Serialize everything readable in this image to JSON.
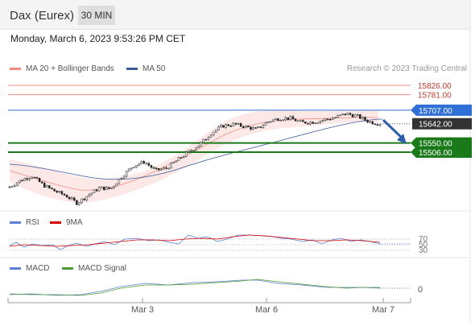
{
  "header": {
    "title": "Dax (Eurex)",
    "timeframe": "30 MIN"
  },
  "date_line": "Monday, March 6, 2023 9:53:26 PM CET",
  "source": "Research © 2023 Trading Central",
  "legend": {
    "bollinger": "MA 20 + Bollinger Bands",
    "ma50": "MA 50",
    "rsi": "RSI",
    "rsi_ma": "9MA",
    "macd": "MACD",
    "macd_signal": "MACD Signal"
  },
  "colors": {
    "bollinger": "#f28b82",
    "ma50": "#3a5a99",
    "rsi": "#5b7fd6",
    "rsi_ma": "#d40000",
    "macd": "#5b7fd6",
    "macd_signal": "#4f9a2e",
    "resistance": "#f28b82",
    "pivot": "#2f6fd6",
    "support": "#1a7a1a",
    "last": "#333333"
  },
  "chart_data": {
    "type": "candlestick",
    "x_labels": [
      "Mar 3",
      "Mar 6",
      "Mar 7"
    ],
    "y_range": [
      15240,
      15880
    ],
    "price_levels": [
      {
        "label": "15826.00",
        "value": 15826,
        "kind": "resistance"
      },
      {
        "label": "15781.00",
        "value": 15781,
        "kind": "resistance"
      },
      {
        "label": "15707.00",
        "value": 15707,
        "kind": "pivot"
      },
      {
        "label": "15642.00",
        "value": 15642,
        "kind": "last"
      },
      {
        "label": "15550.00",
        "value": 15550,
        "kind": "support"
      },
      {
        "label": "15506.00",
        "value": 15506,
        "kind": "support"
      }
    ],
    "price_path": [
      15340,
      15372,
      15392,
      15348,
      15320,
      15298,
      15262,
      15300,
      15335,
      15330,
      15390,
      15440,
      15460,
      15418,
      15430,
      15470,
      15510,
      15545,
      15600,
      15632,
      15640,
      15628,
      15615,
      15652,
      15668,
      15668,
      15648,
      15650,
      15660,
      15672,
      15690,
      15678,
      15652,
      15642
    ],
    "rsi_levels": [
      70,
      50,
      30
    ],
    "macd_zero": "0"
  }
}
